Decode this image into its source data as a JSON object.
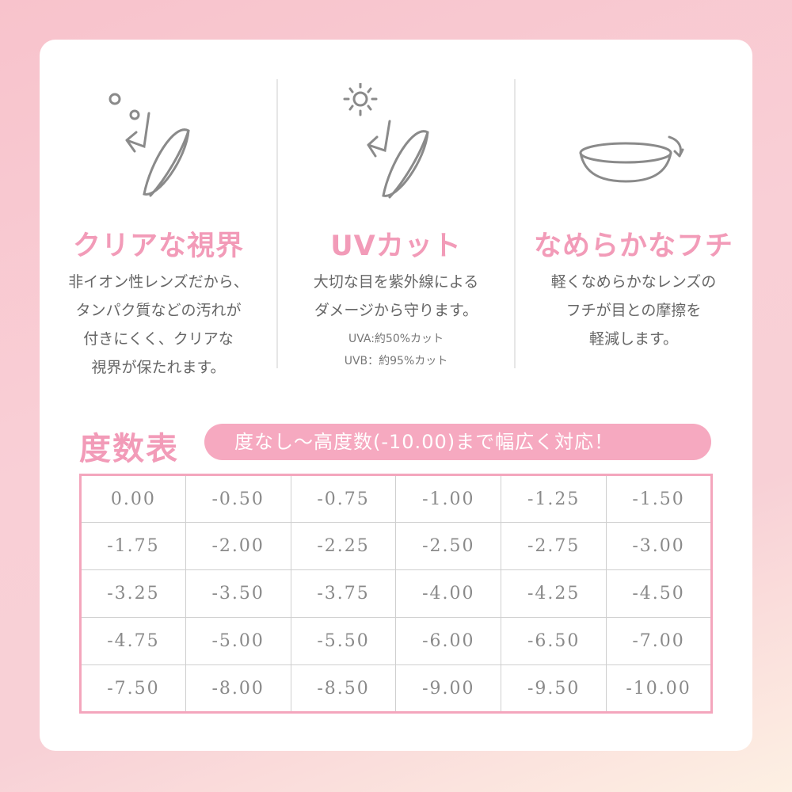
{
  "features": [
    {
      "title": "クリアな視界",
      "body": [
        "非イオン性レンズだから、",
        "タンパク質などの汚れが",
        "付きにくく、クリアな",
        "視界が保たれます。"
      ],
      "icon": "lens-droplets-icon"
    },
    {
      "title": "UVカット",
      "body": [
        "大切な目を紫外線による",
        "ダメージから守ります。"
      ],
      "notes": [
        "UVA:約50%カット",
        "UVB：約95%カット"
      ],
      "icon": "lens-sun-icon"
    },
    {
      "title": "なめらかなフチ",
      "body": [
        "軽くなめらかなレンズの",
        "フチが目との摩擦を",
        "軽減します。"
      ],
      "icon": "lens-edge-icon"
    }
  ],
  "power_table": {
    "heading": "度数表",
    "tagline": "度なし～高度数(-10.00)まで幅広く対応！",
    "rows": [
      [
        "0.00",
        "-0.50",
        "-0.75",
        "-1.00",
        "-1.25",
        "-1.50"
      ],
      [
        "-1.75",
        "-2.00",
        "-2.25",
        "-2.50",
        "-2.75",
        "-3.00"
      ],
      [
        "-3.25",
        "-3.50",
        "-3.75",
        "-4.00",
        "-4.25",
        "-4.50"
      ],
      [
        "-4.75",
        "-5.00",
        "-5.50",
        "-6.00",
        "-6.50",
        "-7.00"
      ],
      [
        "-7.50",
        "-8.00",
        "-8.50",
        "-9.00",
        "-9.50",
        "-10.00"
      ]
    ]
  },
  "colors": {
    "accent": "#f29bb8",
    "pill": "#f6a9c0",
    "icon": "#8a8a8a"
  }
}
